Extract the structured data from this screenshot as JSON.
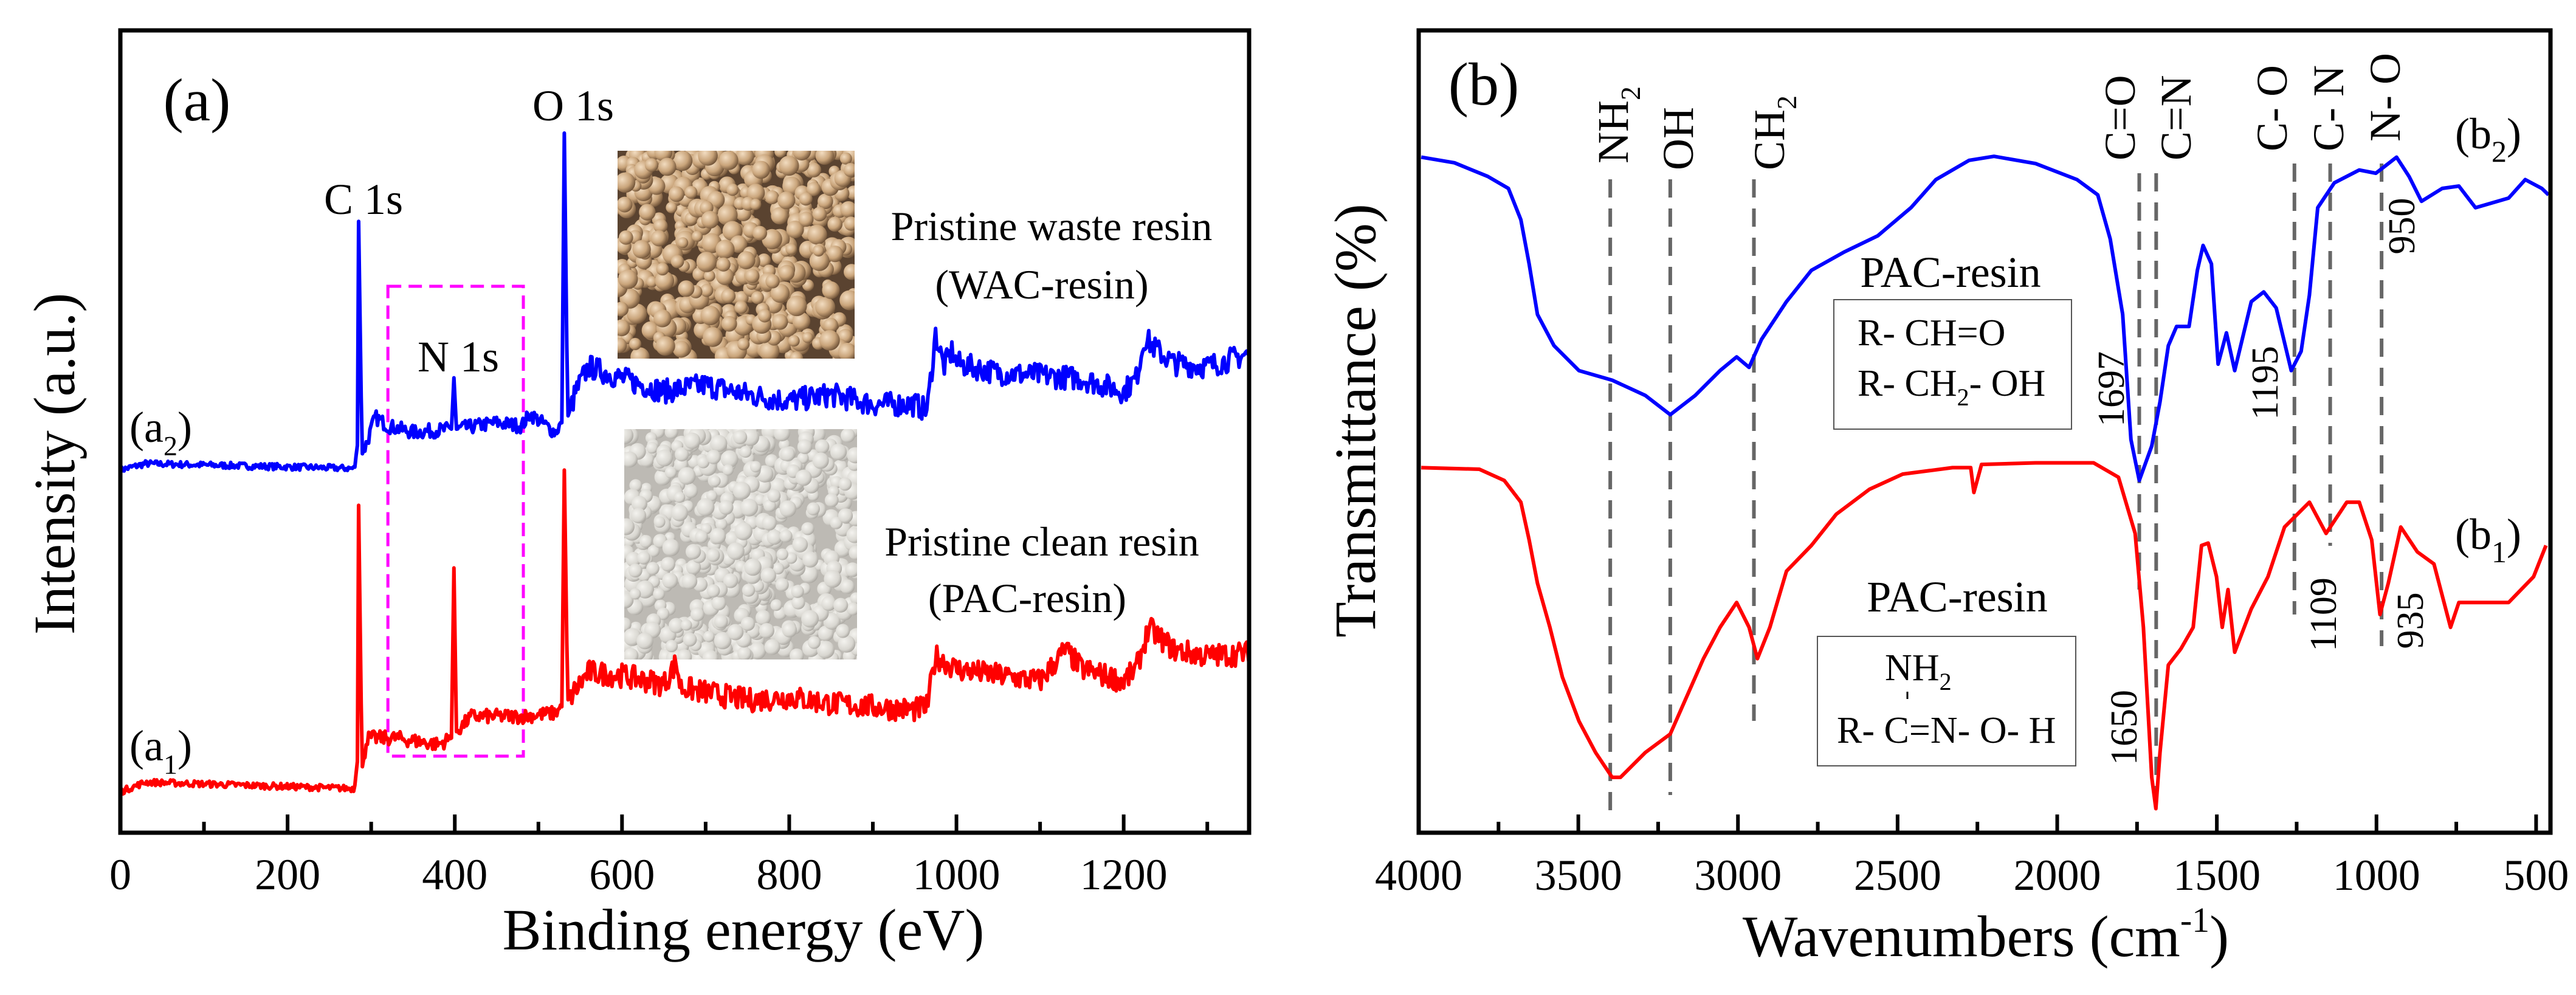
{
  "chart_data": [
    {
      "type": "line",
      "panel_label": "(a)",
      "xlabel": "Binding energy (eV)",
      "ylabel": "Intensity (a.u.)",
      "xlim": [
        0,
        1350
      ],
      "ylim": [
        0,
        100
      ],
      "xticks": [
        0,
        200,
        400,
        600,
        800,
        1000,
        1200
      ],
      "xtick_labels": [
        "0",
        "200",
        "400",
        "600",
        "800",
        "1000",
        "1200"
      ],
      "grid": false,
      "peak_labels": [
        "C 1s",
        "N 1s",
        "O 1s"
      ],
      "highlight_box_ev": [
        320,
        482
      ],
      "insets": [
        {
          "caption1": "Pristine waste resin",
          "caption2": "(WAC-resin)"
        },
        {
          "caption1": "Pristine clean resin",
          "caption2": "(PAC-resin)"
        }
      ],
      "series": [
        {
          "name": "a2",
          "label_main": "(a",
          "label_sub": "2",
          "label_end": ")",
          "color": "#0000ff",
          "points": [
            [
              0,
              45.2
            ],
            [
              30,
              46.0
            ],
            [
              280,
              45.4
            ],
            [
              284,
              48.7
            ],
            [
              285,
              76.2
            ],
            [
              289,
              47.1
            ],
            [
              295,
              48.7
            ],
            [
              305,
              51.8
            ],
            [
              320,
              50.7
            ],
            [
              350,
              49.9
            ],
            [
              396,
              50.3
            ],
            [
              399,
              56.7
            ],
            [
              402,
              50.3
            ],
            [
              450,
              51.1
            ],
            [
              480,
              50.7
            ],
            [
              490,
              52.2
            ],
            [
              520,
              49.9
            ],
            [
              528,
              51.1
            ],
            [
              531,
              87.2
            ],
            [
              535,
              51.8
            ],
            [
              545,
              55.0
            ],
            [
              560,
              58.1
            ],
            [
              600,
              56.6
            ],
            [
              650,
              55.0
            ],
            [
              700,
              55.8
            ],
            [
              750,
              54.6
            ],
            [
              800,
              53.8
            ],
            [
              850,
              54.6
            ],
            [
              900,
              53.4
            ],
            [
              950,
              53.4
            ],
            [
              965,
              52.6
            ],
            [
              975,
              62.1
            ],
            [
              985,
              58.1
            ],
            [
              995,
              60.1
            ],
            [
              1000,
              58.5
            ],
            [
              1050,
              57.3
            ],
            [
              1100,
              57.0
            ],
            [
              1150,
              56.6
            ],
            [
              1200,
              55.0
            ],
            [
              1215,
              56.6
            ],
            [
              1225,
              61.7
            ],
            [
              1240,
              60.1
            ],
            [
              1260,
              58.5
            ],
            [
              1300,
              58.1
            ],
            [
              1350,
              59.7
            ]
          ]
        },
        {
          "name": "a1",
          "label_main": "(a",
          "label_sub": "1",
          "label_end": ")",
          "color": "#ff0000",
          "points": [
            [
              0,
              5.1
            ],
            [
              30,
              6.3
            ],
            [
              280,
              5.5
            ],
            [
              284,
              9.4
            ],
            [
              285,
              40.8
            ],
            [
              289,
              7.9
            ],
            [
              295,
              11.8
            ],
            [
              330,
              11.8
            ],
            [
              380,
              11.0
            ],
            [
              396,
              11.8
            ],
            [
              399,
              33.0
            ],
            [
              402,
              12.6
            ],
            [
              420,
              14.5
            ],
            [
              480,
              14.5
            ],
            [
              520,
              14.9
            ],
            [
              528,
              15.7
            ],
            [
              531,
              45.2
            ],
            [
              535,
              16.5
            ],
            [
              560,
              20.0
            ],
            [
              600,
              19.6
            ],
            [
              650,
              18.5
            ],
            [
              665,
              21.2
            ],
            [
              670,
              18.1
            ],
            [
              750,
              16.5
            ],
            [
              800,
              16.9
            ],
            [
              850,
              16.1
            ],
            [
              900,
              15.7
            ],
            [
              950,
              15.3
            ],
            [
              965,
              15.7
            ],
            [
              975,
              22.0
            ],
            [
              1000,
              20.4
            ],
            [
              1050,
              19.6
            ],
            [
              1100,
              18.9
            ],
            [
              1130,
              22.8
            ],
            [
              1150,
              20.4
            ],
            [
              1200,
              18.9
            ],
            [
              1215,
              20.4
            ],
            [
              1230,
              25.5
            ],
            [
              1260,
              22.8
            ],
            [
              1300,
              22.0
            ],
            [
              1350,
              22.4
            ]
          ]
        }
      ]
    },
    {
      "type": "line",
      "panel_label": "(b)",
      "xlabel_main": "Wavenumbers (cm",
      "xlabel_sup": "-1",
      "xlabel_end": ")",
      "ylabel": "Transmittance (%)",
      "xlim": [
        4000,
        455
      ],
      "ylim": [
        0,
        100
      ],
      "xticks": [
        4000,
        3500,
        3000,
        2500,
        2000,
        1500,
        1000,
        500
      ],
      "xtick_labels": [
        "4000",
        "3500",
        "3000",
        "2500",
        "2000",
        "1500",
        "1000",
        "500"
      ],
      "grid": false,
      "band_markers": [
        {
          "main": "NH",
          "sub": "2",
          "wavenumber": 3400
        },
        {
          "main": "OH",
          "sub": "",
          "wavenumber": 3212
        },
        {
          "main": "CH",
          "sub": "2",
          "wavenumber": 2950
        },
        {
          "main": "C=O",
          "sub": "",
          "wavenumber": 1743
        },
        {
          "main": "C=N",
          "sub": "",
          "wavenumber": 1690
        },
        {
          "main": "C- O",
          "sub": "",
          "wavenumber": 1257
        },
        {
          "main": "C- N",
          "sub": "",
          "wavenumber": 1145
        },
        {
          "main": "N- O",
          "sub": "",
          "wavenumber": 984
        }
      ],
      "peak_values": [
        "1697",
        "1650",
        "1195",
        "1109",
        "950",
        "935"
      ],
      "structure_boxes": [
        {
          "title": "PAC-resin",
          "line1": "R- CH=O",
          "line2_main": "R- CH",
          "line2_sub": "2",
          "line2_end": "- OH"
        },
        {
          "title": "PAC-resin",
          "line1_main": "NH",
          "line1_sub": "2",
          "line2": "R- C=N- O- H"
        }
      ],
      "series": [
        {
          "name": "b2",
          "label_main": "(b",
          "label_sub": "2",
          "label_end": ")",
          "color": "#0000ff",
          "points": [
            [
              3992,
              84.2
            ],
            [
              3888,
              83.5
            ],
            [
              3784,
              81.8
            ],
            [
              3719,
              80.3
            ],
            [
              3680,
              76.4
            ],
            [
              3654,
              70.9
            ],
            [
              3628,
              64.6
            ],
            [
              3576,
              60.7
            ],
            [
              3498,
              57.6
            ],
            [
              3394,
              56.4
            ],
            [
              3290,
              54.5
            ],
            [
              3212,
              52.1
            ],
            [
              3134,
              54.5
            ],
            [
              3056,
              57.6
            ],
            [
              3004,
              59.3
            ],
            [
              2965,
              58.0
            ],
            [
              2926,
              61.5
            ],
            [
              2848,
              66.2
            ],
            [
              2770,
              70.1
            ],
            [
              2666,
              72.4
            ],
            [
              2562,
              74.4
            ],
            [
              2458,
              77.9
            ],
            [
              2380,
              81.4
            ],
            [
              2276,
              83.8
            ],
            [
              2198,
              84.3
            ],
            [
              2068,
              83.4
            ],
            [
              1938,
              81.4
            ],
            [
              1873,
              79.5
            ],
            [
              1834,
              74.0
            ],
            [
              1795,
              64.6
            ],
            [
              1769,
              49.0
            ],
            [
              1743,
              43.9
            ],
            [
              1704,
              48.2
            ],
            [
              1678,
              53.7
            ],
            [
              1652,
              60.7
            ],
            [
              1626,
              63.1
            ],
            [
              1587,
              63.1
            ],
            [
              1561,
              70.1
            ],
            [
              1543,
              73.2
            ],
            [
              1517,
              70.9
            ],
            [
              1496,
              58.4
            ],
            [
              1470,
              62.3
            ],
            [
              1444,
              57.6
            ],
            [
              1392,
              66.2
            ],
            [
              1353,
              67.4
            ],
            [
              1314,
              65.4
            ],
            [
              1267,
              57.6
            ],
            [
              1236,
              60.0
            ],
            [
              1210,
              67.0
            ],
            [
              1184,
              77.9
            ],
            [
              1132,
              81.0
            ],
            [
              1054,
              82.6
            ],
            [
              1002,
              82.2
            ],
            [
              937,
              84.2
            ],
            [
              898,
              81.8
            ],
            [
              859,
              78.7
            ],
            [
              794,
              80.3
            ],
            [
              742,
              80.6
            ],
            [
              690,
              77.9
            ],
            [
              586,
              79.1
            ],
            [
              534,
              81.4
            ],
            [
              482,
              80.3
            ],
            [
              461,
              79.5
            ]
          ]
        },
        {
          "name": "b1",
          "label_main": "(b",
          "label_sub": "1",
          "label_end": ")",
          "color": "#ff0000",
          "points": [
            [
              3992,
              45.5
            ],
            [
              3810,
              45.3
            ],
            [
              3732,
              43.9
            ],
            [
              3680,
              41.2
            ],
            [
              3654,
              36.5
            ],
            [
              3628,
              31.1
            ],
            [
              3589,
              25.6
            ],
            [
              3550,
              19.4
            ],
            [
              3498,
              13.9
            ],
            [
              3446,
              10.0
            ],
            [
              3394,
              6.9
            ],
            [
              3368,
              6.9
            ],
            [
              3290,
              10.0
            ],
            [
              3212,
              12.3
            ],
            [
              3160,
              17.0
            ],
            [
              3108,
              21.7
            ],
            [
              3056,
              25.6
            ],
            [
              3004,
              28.7
            ],
            [
              2965,
              25.6
            ],
            [
              2939,
              21.7
            ],
            [
              2900,
              25.6
            ],
            [
              2848,
              32.6
            ],
            [
              2770,
              35.8
            ],
            [
              2692,
              39.7
            ],
            [
              2588,
              42.8
            ],
            [
              2484,
              44.7
            ],
            [
              2328,
              45.5
            ],
            [
              2271,
              45.5
            ],
            [
              2261,
              42.4
            ],
            [
              2237,
              45.9
            ],
            [
              2068,
              46.1
            ],
            [
              1886,
              46.1
            ],
            [
              1808,
              44.3
            ],
            [
              1756,
              37.3
            ],
            [
              1730,
              25.6
            ],
            [
              1704,
              6.9
            ],
            [
              1691,
              3.0
            ],
            [
              1678,
              10.0
            ],
            [
              1652,
              20.9
            ],
            [
              1613,
              22.9
            ],
            [
              1574,
              25.6
            ],
            [
              1548,
              35.8
            ],
            [
              1527,
              36.1
            ],
            [
              1501,
              31.9
            ],
            [
              1483,
              25.6
            ],
            [
              1465,
              30.3
            ],
            [
              1444,
              22.5
            ],
            [
              1392,
              27.9
            ],
            [
              1340,
              31.9
            ],
            [
              1288,
              38.1
            ],
            [
              1210,
              41.2
            ],
            [
              1158,
              37.3
            ],
            [
              1093,
              41.2
            ],
            [
              1054,
              41.2
            ],
            [
              1015,
              36.5
            ],
            [
              989,
              27.2
            ],
            [
              963,
              31.1
            ],
            [
              924,
              38.1
            ],
            [
              872,
              35.0
            ],
            [
              820,
              33.5
            ],
            [
              768,
              25.6
            ],
            [
              742,
              28.7
            ],
            [
              664,
              28.7
            ],
            [
              586,
              28.7
            ],
            [
              508,
              31.9
            ],
            [
              469,
              35.8
            ]
          ]
        }
      ]
    }
  ]
}
